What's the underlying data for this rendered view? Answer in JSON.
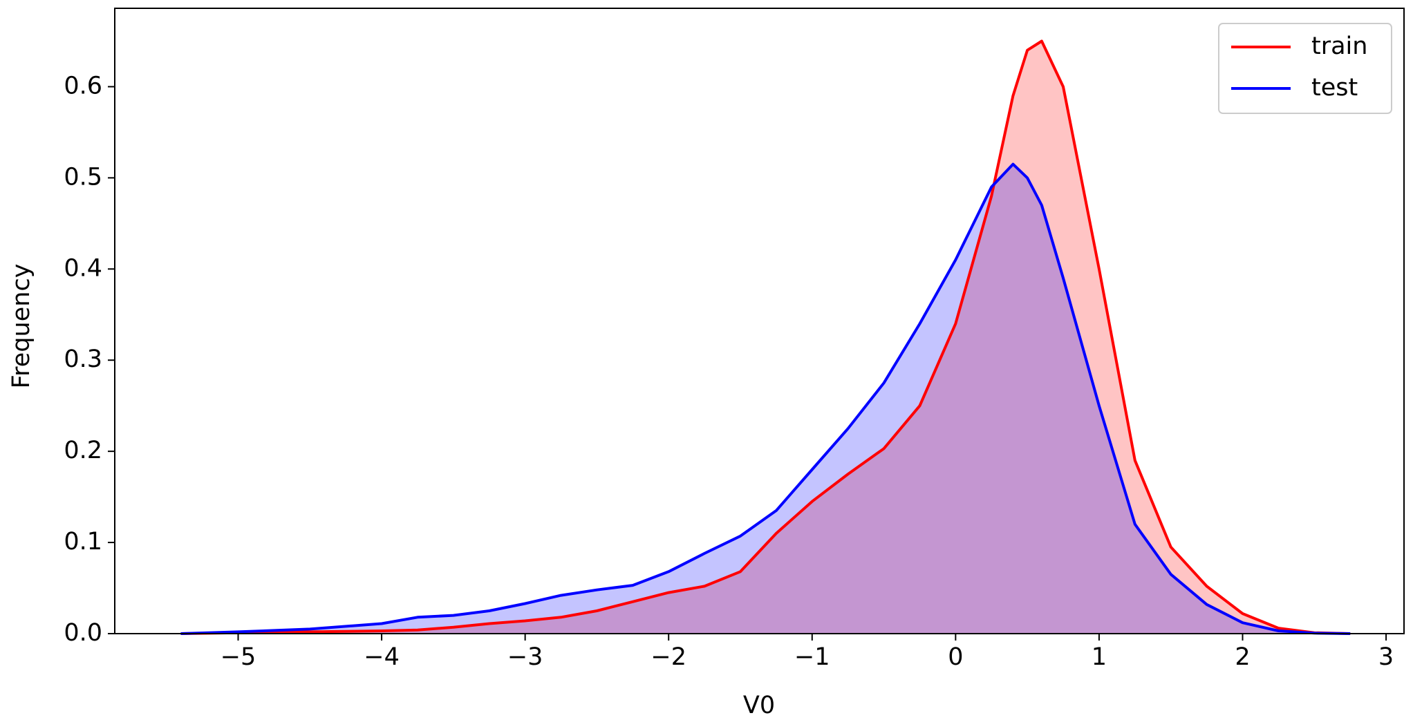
{
  "chart_data": {
    "type": "area",
    "xlabel": "V0",
    "ylabel": "Frequency",
    "x": [
      -5.4,
      -5,
      -4.5,
      -4,
      -3.75,
      -3.5,
      -3.25,
      -3,
      -2.75,
      -2.5,
      -2.25,
      -2,
      -1.75,
      -1.5,
      -1.25,
      -1,
      -0.75,
      -0.5,
      -0.25,
      0,
      0.25,
      0.4,
      0.5,
      0.6,
      0.75,
      1,
      1.25,
      1.5,
      1.75,
      2,
      2.25,
      2.5,
      2.75
    ],
    "series": [
      {
        "name": "train",
        "color": "#ff0000",
        "values": [
          0,
          0.001,
          0.002,
          0.003,
          0.004,
          0.007,
          0.011,
          0.014,
          0.018,
          0.025,
          0.035,
          0.045,
          0.052,
          0.068,
          0.11,
          0.145,
          0.175,
          0.203,
          0.25,
          0.34,
          0.48,
          0.59,
          0.64,
          0.65,
          0.6,
          0.4,
          0.19,
          0.095,
          0.052,
          0.022,
          0.006,
          0.001,
          0
        ]
      },
      {
        "name": "test",
        "color": "#0000ff",
        "values": [
          0,
          0.002,
          0.005,
          0.011,
          0.018,
          0.02,
          0.025,
          0.033,
          0.042,
          0.048,
          0.053,
          0.068,
          0.088,
          0.107,
          0.135,
          0.18,
          0.225,
          0.275,
          0.34,
          0.41,
          0.49,
          0.515,
          0.5,
          0.47,
          0.39,
          0.25,
          0.12,
          0.065,
          0.032,
          0.012,
          0.003,
          0.0005,
          0
        ]
      }
    ],
    "xlim": [
      -5.86,
      3.125
    ],
    "ylim": [
      0,
      0.686
    ],
    "xticks": [
      {
        "value": -5,
        "label": "−5"
      },
      {
        "value": -4,
        "label": "−4"
      },
      {
        "value": -3,
        "label": "−3"
      },
      {
        "value": -2,
        "label": "−2"
      },
      {
        "value": -1,
        "label": "−1"
      },
      0,
      1,
      2,
      3
    ],
    "yticks": [
      {
        "value": 0,
        "label": "0.0"
      },
      0.1,
      0.2,
      0.3,
      0.4,
      0.5,
      0.6
    ],
    "fill_alpha": 0.23,
    "legend": "upper right"
  }
}
